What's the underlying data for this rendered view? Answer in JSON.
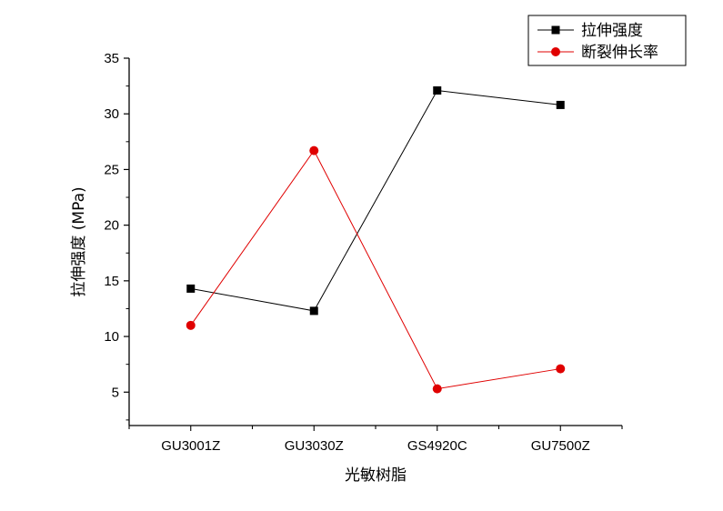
{
  "chart_data": {
    "type": "line",
    "categories": [
      "GU3001Z",
      "GU3030Z",
      "GS4920C",
      "GU7500Z"
    ],
    "series": [
      {
        "name": "拉伸强度",
        "marker": "square",
        "color": "#000000",
        "values": [
          14.3,
          12.3,
          32.1,
          30.8
        ]
      },
      {
        "name": "断裂伸长率",
        "marker": "circle",
        "color": "#e00000",
        "values": [
          11.0,
          26.7,
          5.3,
          7.1
        ]
      }
    ],
    "xlabel": "光敏树脂",
    "ylabel": "拉伸强度 (MPa)",
    "ylim": [
      2,
      35
    ],
    "yticks": [
      5,
      10,
      15,
      20,
      25,
      30,
      35
    ],
    "legend_position": "top-right",
    "grid": false
  }
}
